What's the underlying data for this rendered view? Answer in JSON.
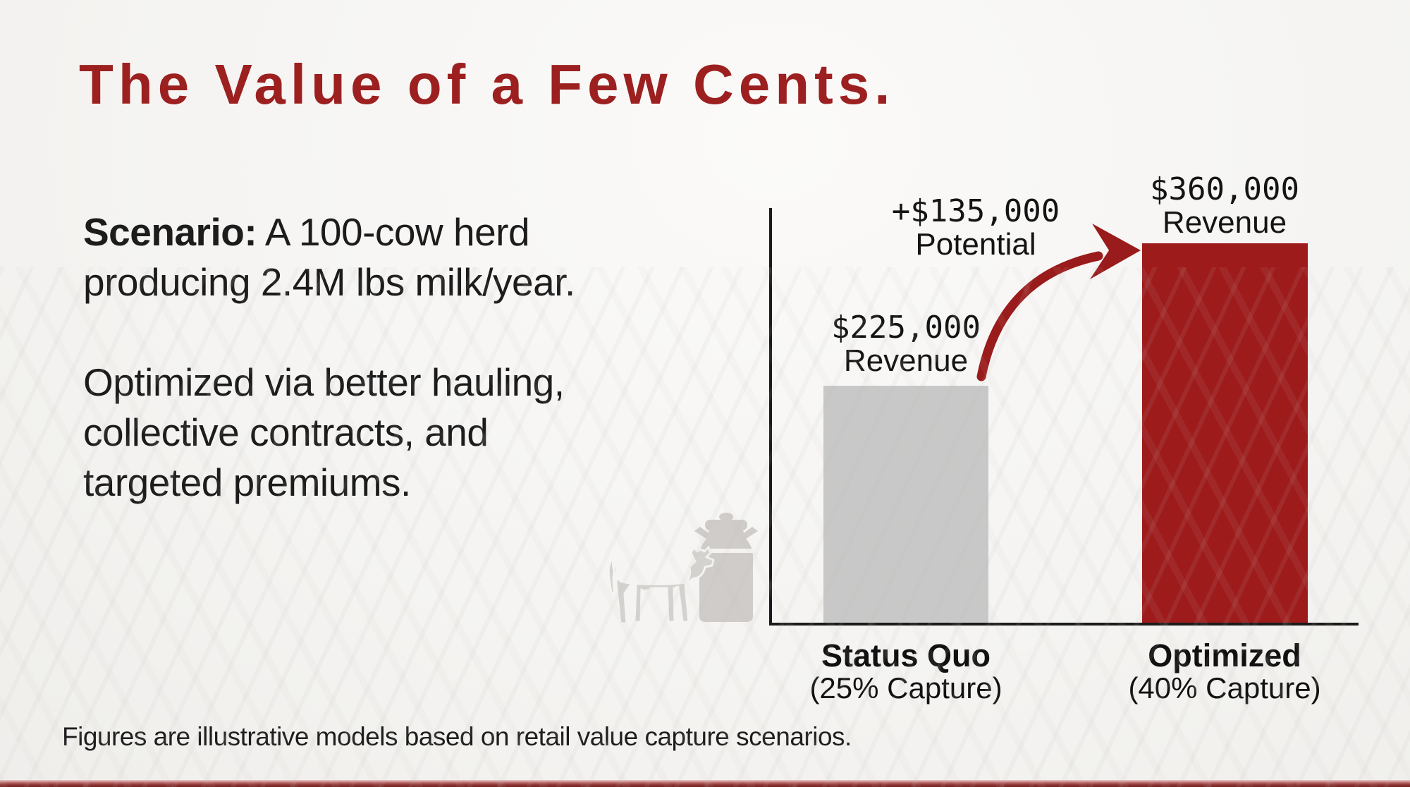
{
  "title": "The Value of a Few Cents.",
  "body": {
    "p1_lead": "Scenario:",
    "p1_line1_rest": " A 100-cow herd",
    "p1_line2": "producing 2.4M lbs milk/year.",
    "p2_line1": "Optimized via better hauling,",
    "p2_line2": "collective contracts, and",
    "p2_line3": "targeted premiums."
  },
  "footer": "Figures are illustrative models based on retail value capture scenarios.",
  "colors": {
    "accent_red": "#9c2020",
    "bar_red": "#9e1b1b",
    "bar_gray": "#c8c8c8",
    "arrow_red": "#9a1b1b",
    "axis_black": "#1b1b1b",
    "background": "#f5f4f2",
    "silhouette_gray": "#d4d2cf"
  },
  "chart": {
    "bar1": {
      "value": "$225,000",
      "value_sub": "Revenue",
      "cat_line1": "Status Quo",
      "cat_line2": "(25% Capture)"
    },
    "bar2": {
      "value": "$360,000",
      "value_sub": "Revenue",
      "cat_line1": "Optimized",
      "cat_line2": "(40% Capture)"
    },
    "gain": {
      "line1": "+$135,000",
      "line2": "Potential"
    }
  },
  "chart_data": {
    "type": "bar",
    "categories": [
      "Status Quo (25% Capture)",
      "Optimized (40% Capture)"
    ],
    "values": [
      225000,
      360000
    ],
    "bar_colors": [
      "#c8c8c8",
      "#9e1b1b"
    ],
    "value_labels": [
      "$225,000 Revenue",
      "$360,000 Revenue"
    ],
    "annotations": [
      "+$135,000 Potential"
    ],
    "title": "",
    "xlabel": "",
    "ylabel": "",
    "ylim": [
      0,
      380000
    ],
    "grid": false,
    "legend": false
  },
  "icons": {
    "cow": "cow-icon",
    "milk_can": "milk-can-icon",
    "arrow": "growth-arrow-icon"
  }
}
